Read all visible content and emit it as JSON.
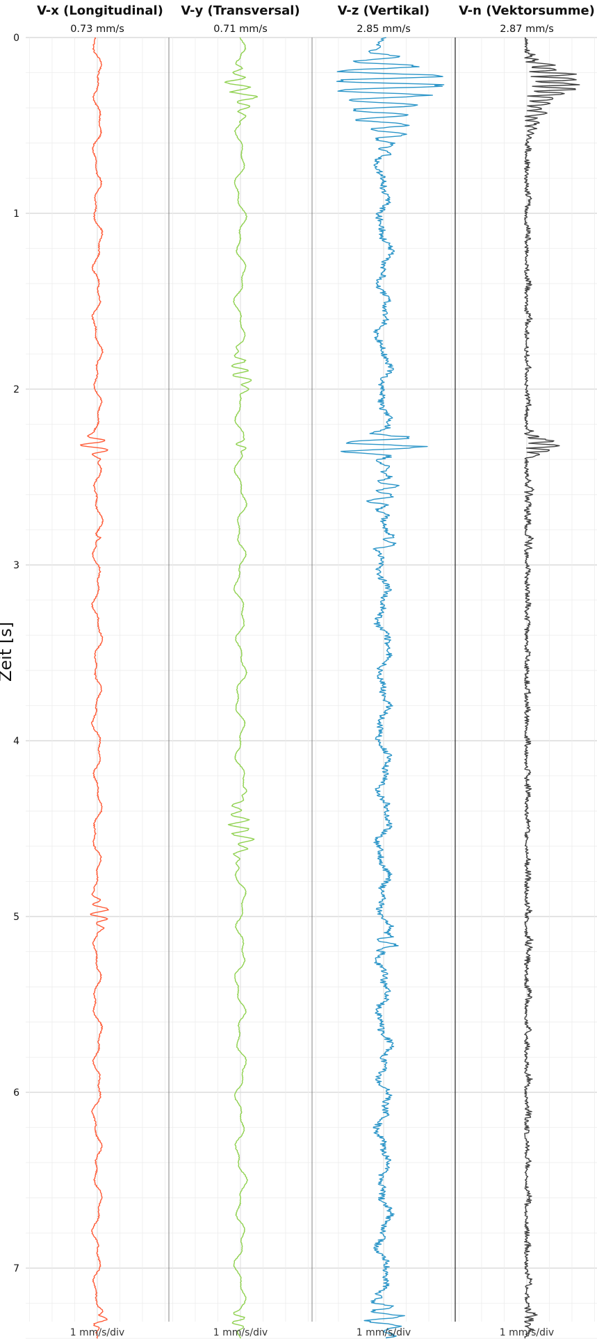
{
  "chart_data": {
    "type": "line",
    "ylabel": "Zeit [s]",
    "ylim": [
      0,
      7.4
    ],
    "y_ticks": [
      "0",
      "1",
      "2",
      "3",
      "4",
      "5",
      "6",
      "7"
    ],
    "grid": true,
    "scale_label": "1 mm/s/div",
    "series": [
      {
        "name": "V-x (Longitudinal)",
        "peak_label": "0.73 mm/s",
        "color": "#ff5a36",
        "baseline": 0,
        "amplitude": 0.25,
        "noise": 0.03,
        "bursts": [
          {
            "t": 2.31,
            "amp": 0.73,
            "width": 0.04
          },
          {
            "t": 2.36,
            "amp": 0.25,
            "width": 0.05
          },
          {
            "t": 2.85,
            "amp": 0.2,
            "width": 0.02
          },
          {
            "t": 4.98,
            "amp": 0.45,
            "width": 0.08
          },
          {
            "t": 7.3,
            "amp": 0.3,
            "width": 0.05
          }
        ]
      },
      {
        "name": "V-y (Transversal)",
        "peak_label": "0.71 mm/s",
        "color": "#8fd14f",
        "baseline": 0,
        "amplitude": 0.3,
        "noise": 0.02,
        "bursts": [
          {
            "t": 0.3,
            "amp": 0.6,
            "width": 0.12
          },
          {
            "t": 1.9,
            "amp": 0.45,
            "width": 0.1
          },
          {
            "t": 2.32,
            "amp": 0.3,
            "width": 0.03
          },
          {
            "t": 4.5,
            "amp": 0.5,
            "width": 0.15
          },
          {
            "t": 7.3,
            "amp": 0.4,
            "width": 0.05
          }
        ]
      },
      {
        "name": "V-z (Vertikal)",
        "peak_label": "2.85 mm/s",
        "color": "#2b95c8",
        "baseline": 0,
        "amplitude": 0.35,
        "noise": 0.15,
        "bursts": [
          {
            "t": 0.24,
            "amp": 2.85,
            "width": 0.12
          },
          {
            "t": 0.45,
            "amp": 1.2,
            "width": 0.15
          },
          {
            "t": 2.32,
            "amp": 2.2,
            "width": 0.06
          },
          {
            "t": 2.6,
            "amp": 0.6,
            "width": 0.1
          },
          {
            "t": 2.88,
            "amp": 0.5,
            "width": 0.04
          },
          {
            "t": 5.15,
            "amp": 0.6,
            "width": 0.05
          },
          {
            "t": 7.28,
            "amp": 0.9,
            "width": 0.08
          }
        ]
      },
      {
        "name": "V-n (Vektorsumme)",
        "peak_label": "2.87 mm/s",
        "color": "#3f3f3f",
        "baseline": 0,
        "amplitude": 0.25,
        "noise": 0.15,
        "bursts": [
          {
            "t": 0.24,
            "amp": 2.87,
            "width": 0.1
          },
          {
            "t": 0.4,
            "amp": 1.0,
            "width": 0.15
          },
          {
            "t": 2.32,
            "amp": 2.0,
            "width": 0.06
          },
          {
            "t": 2.6,
            "amp": 0.4,
            "width": 0.1
          },
          {
            "t": 2.88,
            "amp": 0.4,
            "width": 0.04
          },
          {
            "t": 5.15,
            "amp": 0.4,
            "width": 0.05
          },
          {
            "t": 7.28,
            "amp": 0.6,
            "width": 0.08
          }
        ]
      }
    ]
  }
}
